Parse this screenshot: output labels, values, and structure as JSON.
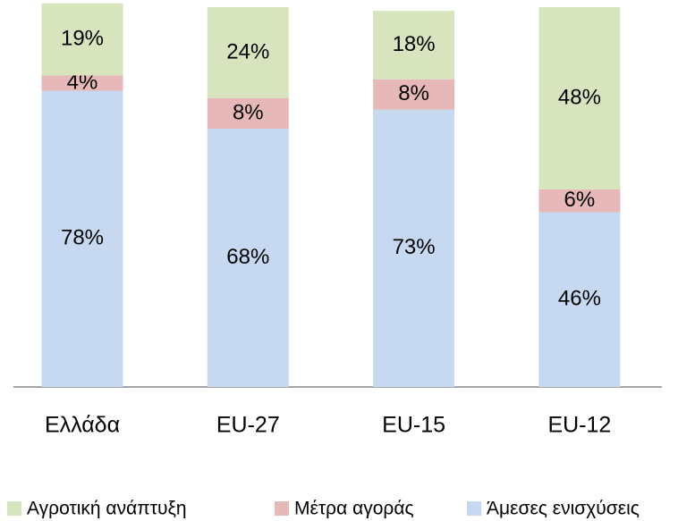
{
  "chart_data": {
    "type": "stacked_bar",
    "categories": [
      "Ελλάδα",
      "EU-27",
      "EU-15",
      "EU-12"
    ],
    "ylim": [
      0,
      100
    ],
    "series": [
      {
        "name": "Αγροτική ανάπτυξη",
        "color": "#d7e4bd",
        "values": [
          19,
          24,
          18,
          48
        ],
        "value_labels": [
          "19%",
          "24%",
          "18%",
          "48%"
        ]
      },
      {
        "name": "Μέτρα αγοράς",
        "color": "#e6b9b8",
        "values": [
          4,
          8,
          8,
          6
        ],
        "value_labels": [
          "4%",
          "8%",
          "8%",
          "6%"
        ]
      },
      {
        "name": "Άμεσες ενισχύσεις",
        "color": "#c6d9f1",
        "values": [
          78,
          68,
          73,
          46
        ],
        "value_labels": [
          "78%",
          "68%",
          "73%",
          "46%"
        ]
      }
    ],
    "legend": "bottom"
  }
}
